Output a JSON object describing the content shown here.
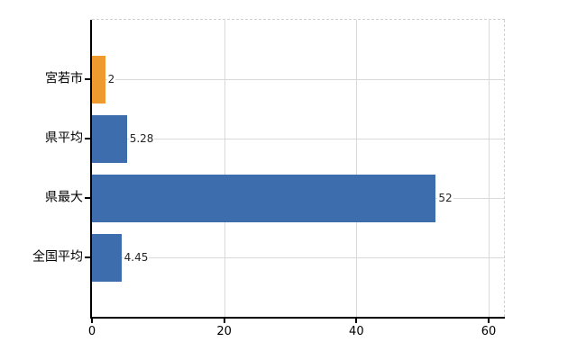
{
  "chart_data": {
    "type": "bar",
    "orientation": "horizontal",
    "title": "",
    "xlabel": "",
    "ylabel": "",
    "categories": [
      "宮若市",
      "県平均",
      "県最大",
      "全国平均"
    ],
    "values": [
      2,
      5.28,
      52,
      4.45
    ],
    "value_labels": [
      "2",
      "5.28",
      "52",
      "4.45"
    ],
    "series": [
      {
        "name": "",
        "values": [
          2,
          5.28,
          52,
          4.45
        ]
      }
    ],
    "bar_colors": [
      "#EF9A2E",
      "#3D6DAC",
      "#3D6DAC",
      "#3D6DAC"
    ],
    "x_ticks": [
      0,
      20,
      40,
      60
    ],
    "x_tick_labels": [
      "0",
      "20",
      "40",
      "60"
    ],
    "xlim": [
      0,
      62.5
    ],
    "grid": true,
    "legend": false,
    "colors": {
      "bar_blue": "#3D6DAC",
      "bar_orange": "#EF9A2E",
      "axis": "#000000",
      "gridline": "#d9d9d9",
      "dashed_border": "#cfcfcf",
      "text": "#000000",
      "value_text": "#262626",
      "background": "#ffffff"
    }
  }
}
